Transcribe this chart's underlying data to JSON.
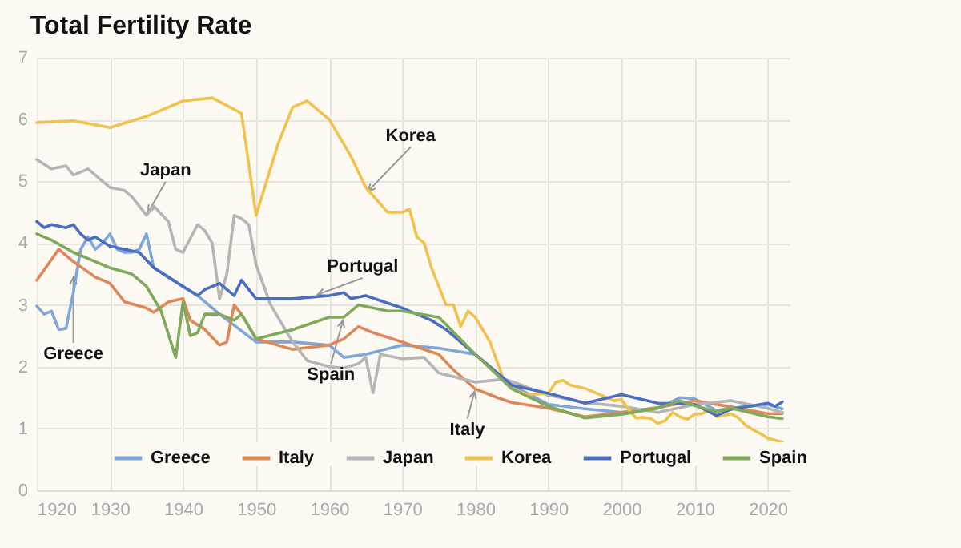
{
  "chart_data": {
    "type": "line",
    "title": "Total Fertility Rate",
    "xlim": [
      1920,
      2023
    ],
    "xticks": [
      1920,
      1930,
      1940,
      1950,
      1960,
      1970,
      1980,
      1990,
      2000,
      2010,
      2020
    ],
    "ylim": [
      0,
      7
    ],
    "yticks": [
      0,
      1,
      2,
      3,
      4,
      5,
      6,
      7
    ],
    "grid": true,
    "legend": "bottom",
    "marker": "none",
    "line_style": "solid",
    "series": [
      {
        "name": "Greece",
        "color": "#7fa7d9",
        "x": [
          1920,
          1921,
          1922,
          1923,
          1924,
          1925,
          1926,
          1927,
          1928,
          1929,
          1930,
          1931,
          1932,
          1933,
          1934,
          1935,
          1936,
          1938,
          1940,
          1942,
          1945,
          1950,
          1955,
          1960,
          1962,
          1965,
          1970,
          1975,
          1980,
          1985,
          1990,
          1995,
          2000,
          2005,
          2008,
          2010,
          2013,
          2015,
          2020,
          2022
        ],
        "values": [
          2.98,
          2.85,
          2.9,
          2.6,
          2.62,
          3.2,
          3.9,
          4.1,
          3.9,
          4.0,
          4.15,
          3.9,
          3.85,
          3.85,
          3.9,
          4.15,
          3.6,
          3.45,
          3.3,
          3.15,
          2.85,
          2.4,
          2.4,
          2.35,
          2.15,
          2.2,
          2.35,
          2.3,
          2.2,
          1.7,
          1.39,
          1.32,
          1.26,
          1.33,
          1.5,
          1.48,
          1.29,
          1.33,
          1.39,
          1.32
        ]
      },
      {
        "name": "Italy",
        "color": "#e0875a",
        "x": [
          1920,
          1923,
          1925,
          1928,
          1930,
          1932,
          1935,
          1936,
          1938,
          1940,
          1941,
          1943,
          1945,
          1946,
          1947,
          1948,
          1950,
          1955,
          1960,
          1962,
          1964,
          1966,
          1970,
          1975,
          1977,
          1980,
          1983,
          1985,
          1990,
          1995,
          2000,
          2005,
          2010,
          2015,
          2020,
          2022
        ],
        "values": [
          3.4,
          3.9,
          3.7,
          3.45,
          3.35,
          3.05,
          2.95,
          2.88,
          3.05,
          3.1,
          2.75,
          2.6,
          2.35,
          2.4,
          3.0,
          2.85,
          2.45,
          2.28,
          2.35,
          2.45,
          2.65,
          2.55,
          2.4,
          2.2,
          1.95,
          1.64,
          1.5,
          1.42,
          1.33,
          1.19,
          1.26,
          1.34,
          1.45,
          1.35,
          1.24,
          1.24
        ]
      },
      {
        "name": "Japan",
        "color": "#b5b5b5",
        "x": [
          1920,
          1922,
          1924,
          1925,
          1927,
          1929,
          1930,
          1932,
          1933,
          1935,
          1936,
          1938,
          1939,
          1940,
          1942,
          1943,
          1944,
          1945,
          1946,
          1947,
          1948,
          1949,
          1950,
          1952,
          1955,
          1957,
          1960,
          1962,
          1964,
          1965,
          1966,
          1967,
          1970,
          1973,
          1975,
          1980,
          1984,
          1985,
          1990,
          1995,
          2000,
          2005,
          2010,
          2015,
          2020,
          2022
        ],
        "values": [
          5.35,
          5.2,
          5.25,
          5.1,
          5.2,
          5.0,
          4.9,
          4.85,
          4.75,
          4.45,
          4.6,
          4.35,
          3.9,
          3.85,
          4.3,
          4.2,
          4.0,
          3.1,
          3.5,
          4.45,
          4.4,
          4.3,
          3.65,
          3.0,
          2.4,
          2.1,
          2.0,
          1.98,
          2.05,
          2.15,
          1.58,
          2.2,
          2.13,
          2.15,
          1.9,
          1.75,
          1.8,
          1.76,
          1.54,
          1.42,
          1.36,
          1.26,
          1.39,
          1.45,
          1.33,
          1.26
        ]
      },
      {
        "name": "Korea",
        "color": "#f2c14e",
        "x": [
          1920,
          1925,
          1930,
          1935,
          1940,
          1944,
          1948,
          1950,
          1953,
          1955,
          1957,
          1960,
          1963,
          1965,
          1968,
          1970,
          1971,
          1972,
          1973,
          1974,
          1976,
          1977,
          1978,
          1979,
          1980,
          1982,
          1984,
          1985,
          1987,
          1990,
          1991,
          1992,
          1993,
          1995,
          1997,
          1999,
          2000,
          2001,
          2002,
          2003,
          2004,
          2005,
          2006,
          2007,
          2008,
          2009,
          2010,
          2011,
          2012,
          2013,
          2014,
          2015,
          2016,
          2017,
          2018,
          2019,
          2020,
          2021,
          2022
        ],
        "values": [
          5.95,
          5.98,
          5.87,
          6.05,
          6.3,
          6.35,
          6.1,
          4.45,
          5.6,
          6.2,
          6.3,
          6.0,
          5.4,
          4.9,
          4.5,
          4.5,
          4.55,
          4.1,
          4.0,
          3.6,
          3.0,
          3.0,
          2.65,
          2.9,
          2.8,
          2.4,
          1.75,
          1.65,
          1.55,
          1.57,
          1.75,
          1.78,
          1.7,
          1.65,
          1.55,
          1.45,
          1.47,
          1.3,
          1.17,
          1.18,
          1.16,
          1.08,
          1.13,
          1.26,
          1.19,
          1.15,
          1.23,
          1.24,
          1.3,
          1.19,
          1.21,
          1.24,
          1.17,
          1.05,
          0.98,
          0.92,
          0.84,
          0.81,
          0.78
        ]
      },
      {
        "name": "Portugal",
        "color": "#4a6fc2",
        "x": [
          1920,
          1921,
          1922,
          1924,
          1925,
          1926,
          1927,
          1928,
          1930,
          1932,
          1934,
          1936,
          1938,
          1940,
          1942,
          1943,
          1945,
          1947,
          1948,
          1950,
          1955,
          1960,
          1962,
          1963,
          1965,
          1970,
          1974,
          1976,
          1980,
          1985,
          1990,
          1995,
          2000,
          2005,
          2010,
          2013,
          2015,
          2020,
          2021,
          2022
        ],
        "values": [
          4.35,
          4.25,
          4.3,
          4.25,
          4.3,
          4.15,
          4.05,
          4.1,
          3.95,
          3.9,
          3.85,
          3.6,
          3.45,
          3.3,
          3.15,
          3.25,
          3.35,
          3.15,
          3.4,
          3.1,
          3.1,
          3.15,
          3.2,
          3.1,
          3.15,
          2.95,
          2.75,
          2.6,
          2.2,
          1.7,
          1.57,
          1.41,
          1.55,
          1.41,
          1.39,
          1.21,
          1.31,
          1.41,
          1.36,
          1.43
        ]
      },
      {
        "name": "Spain",
        "color": "#7dab5a",
        "x": [
          1920,
          1922,
          1925,
          1927,
          1930,
          1933,
          1935,
          1937,
          1939,
          1940,
          1941,
          1942,
          1943,
          1945,
          1947,
          1948,
          1950,
          1955,
          1960,
          1962,
          1964,
          1968,
          1970,
          1975,
          1980,
          1985,
          1990,
          1995,
          2000,
          2005,
          2008,
          2010,
          2013,
          2015,
          2020,
          2022
        ],
        "values": [
          4.15,
          4.05,
          3.85,
          3.75,
          3.6,
          3.5,
          3.3,
          2.9,
          2.15,
          3.05,
          2.5,
          2.55,
          2.85,
          2.85,
          2.75,
          2.85,
          2.45,
          2.6,
          2.8,
          2.8,
          3.0,
          2.9,
          2.9,
          2.8,
          2.2,
          1.64,
          1.36,
          1.17,
          1.23,
          1.33,
          1.45,
          1.37,
          1.27,
          1.33,
          1.19,
          1.16
        ]
      }
    ],
    "annotations": [
      {
        "text": "Japan",
        "x": 1935,
        "y": 4.45
      },
      {
        "text": "Korea",
        "x": 1965,
        "y": 4.8
      },
      {
        "text": "Portugal",
        "x": 1958,
        "y": 3.15
      },
      {
        "text": "Greece",
        "x": 1925,
        "y": 3.5
      },
      {
        "text": "Spain",
        "x": 1962,
        "y": 2.8
      },
      {
        "text": "Italy",
        "x": 1980,
        "y": 1.65
      }
    ]
  }
}
